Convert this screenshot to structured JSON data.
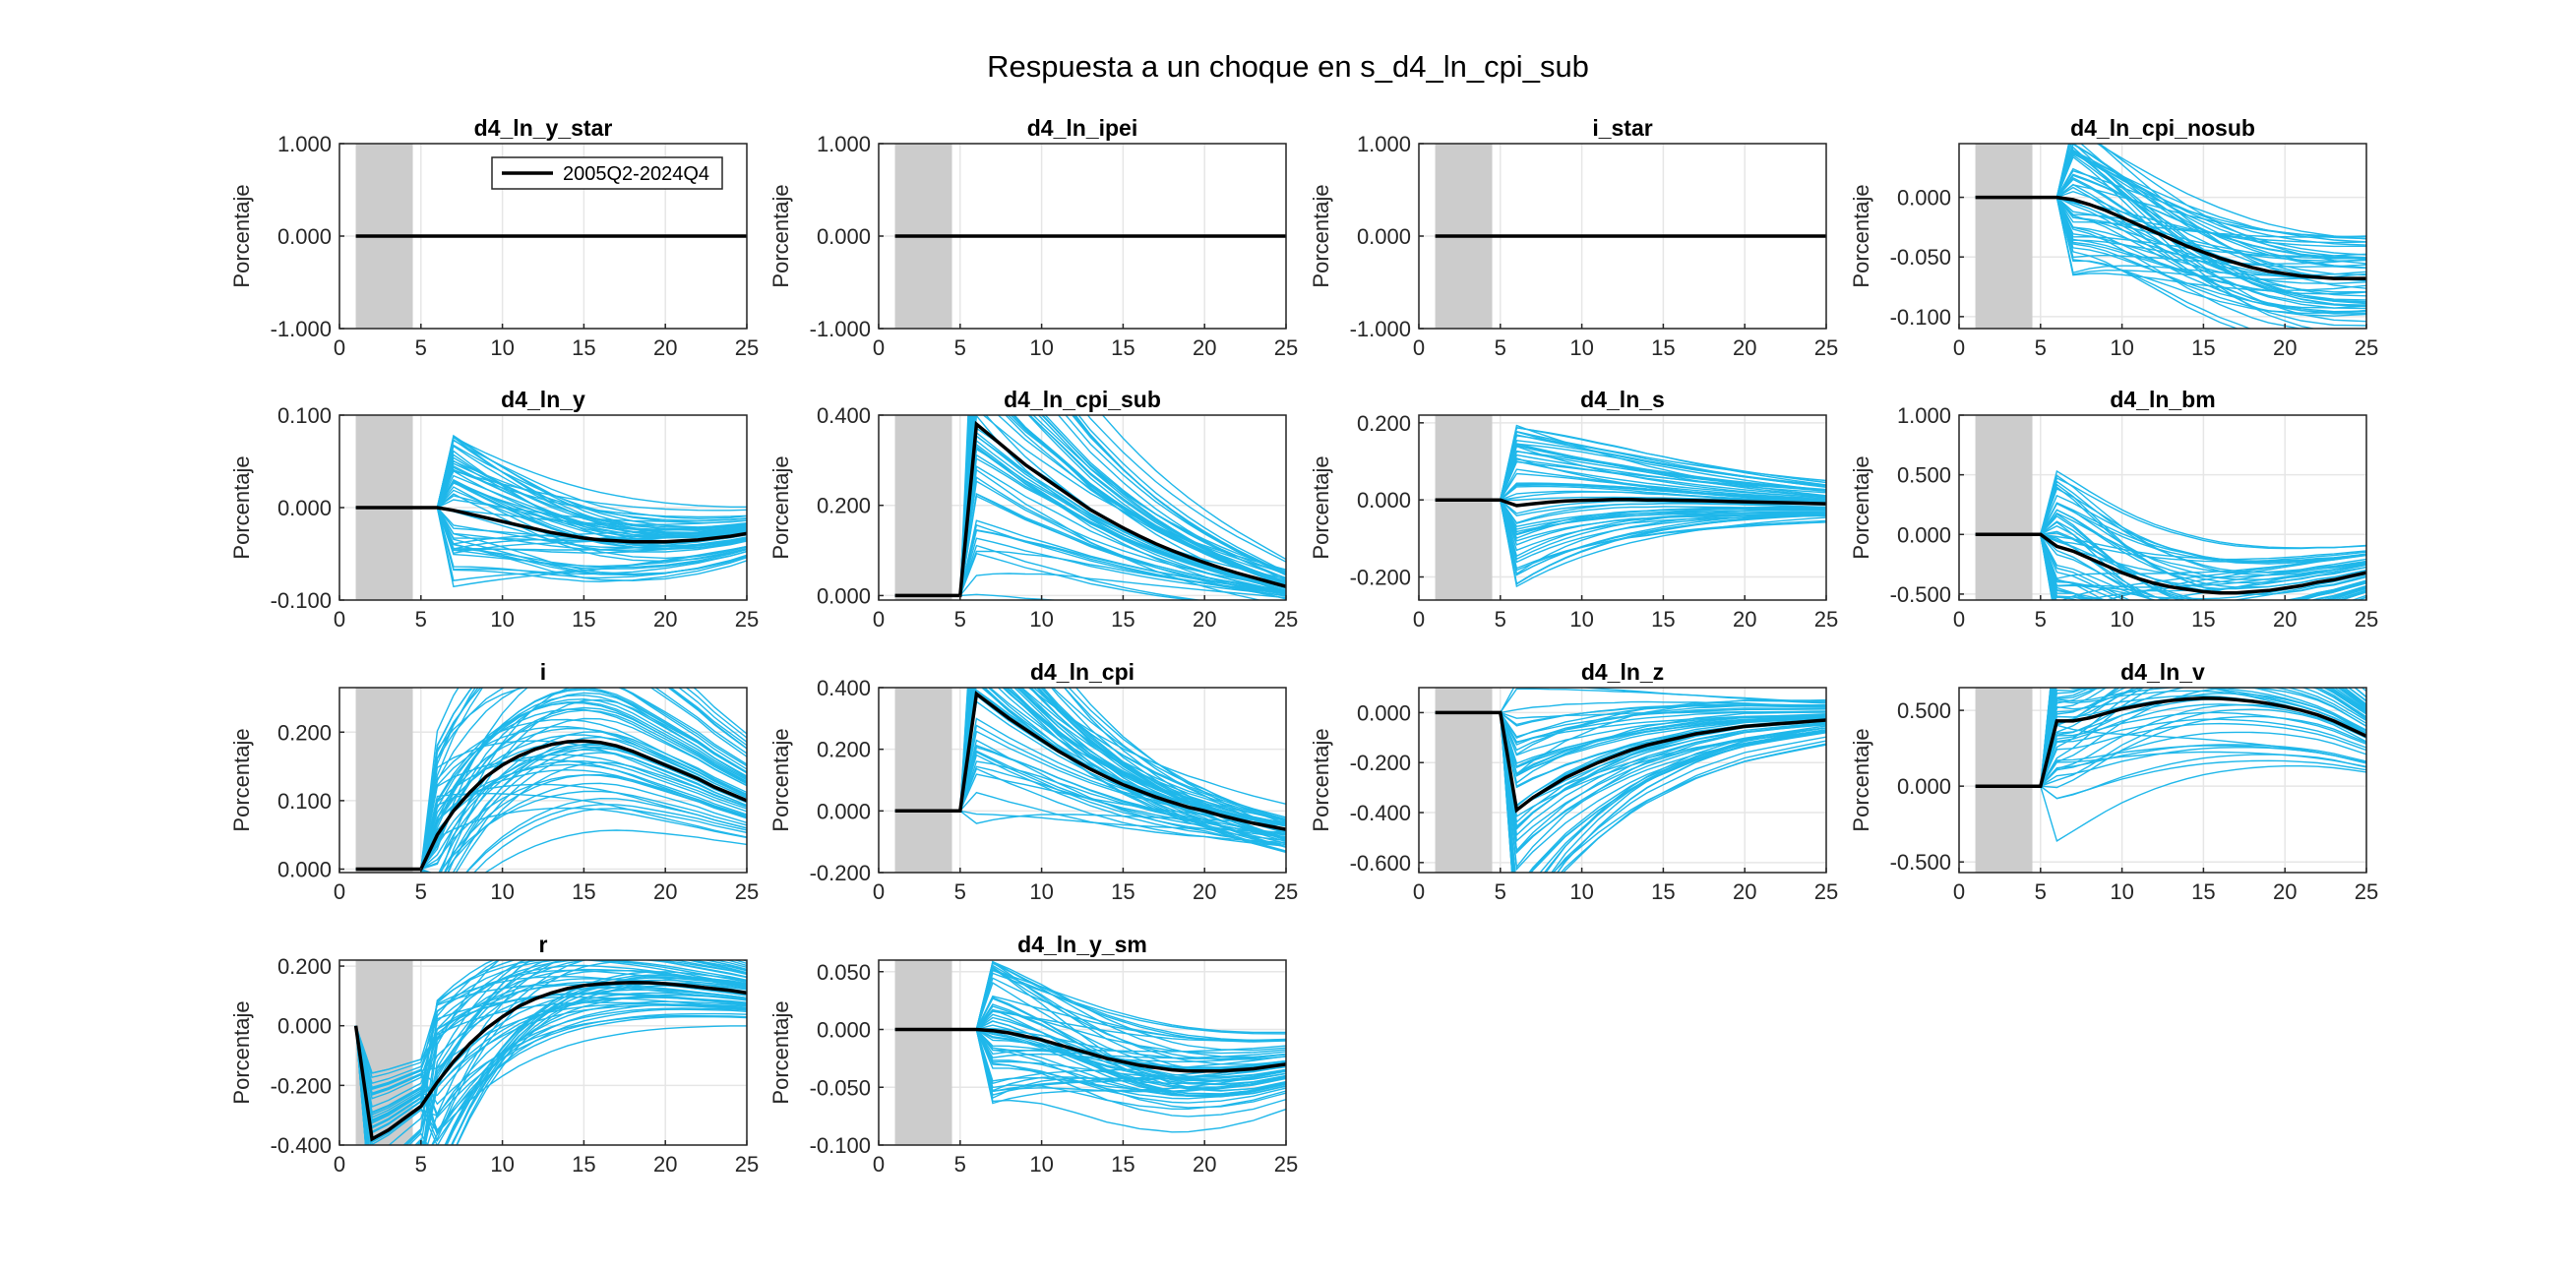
{
  "figure": {
    "title": "Respuesta a un choque en s_d4_ln_cpi_sub",
    "colors": {
      "mean_line": "#000000",
      "draw_lines": "#1fb7ea",
      "shade": "#cccccc",
      "grid": "#e6e6e6",
      "axes": "#262626"
    },
    "legend": {
      "entries": [
        "2005Q2-2024Q4"
      ],
      "placement": "top-right of first panel"
    }
  },
  "chart_data": [
    {
      "type": "line",
      "title": "d4_ln_y_star",
      "ylabel": "Porcentaje",
      "xlim": [
        0,
        25
      ],
      "ylim": [
        -1,
        1
      ],
      "yticks": [
        -1,
        0,
        1
      ],
      "ytick_labels": [
        "-1.000",
        "0.000",
        "1.000"
      ],
      "xticks": [
        0,
        5,
        10,
        15,
        20,
        25
      ],
      "shaded_x": [
        1,
        4.5
      ],
      "grid": true,
      "series": [
        {
          "name": "2005Q2-2024Q4",
          "x": [
            1,
            25
          ],
          "y": [
            0,
            0
          ]
        }
      ]
    },
    {
      "type": "line",
      "title": "d4_ln_ipei",
      "ylabel": "Porcentaje",
      "xlim": [
        0,
        25
      ],
      "ylim": [
        -1,
        1
      ],
      "yticks": [
        -1,
        0,
        1
      ],
      "ytick_labels": [
        "-1.000",
        "0.000",
        "1.000"
      ],
      "xticks": [
        0,
        5,
        10,
        15,
        20,
        25
      ],
      "shaded_x": [
        1,
        4.5
      ],
      "grid": true,
      "series": [
        {
          "x": [
            1,
            25
          ],
          "y": [
            0,
            0
          ]
        }
      ]
    },
    {
      "type": "line",
      "title": "i_star",
      "ylabel": "Porcentaje",
      "xlim": [
        0,
        25
      ],
      "ylim": [
        -1,
        1
      ],
      "yticks": [
        -1,
        0,
        1
      ],
      "ytick_labels": [
        "-1.000",
        "0.000",
        "1.000"
      ],
      "xticks": [
        0,
        5,
        10,
        15,
        20,
        25
      ],
      "shaded_x": [
        1,
        4.5
      ],
      "grid": true,
      "series": [
        {
          "x": [
            1,
            25
          ],
          "y": [
            0,
            0
          ]
        }
      ]
    },
    {
      "type": "line",
      "title": "d4_ln_cpi_nosub",
      "ylabel": "Porcentaje",
      "xlim": [
        0,
        25
      ],
      "ylim": [
        -0.11,
        0.045
      ],
      "yticks": [
        -0.1,
        -0.05,
        0
      ],
      "ytick_labels": [
        "-0.100",
        "-0.050",
        "0.000"
      ],
      "xticks": [
        0,
        5,
        10,
        15,
        20,
        25
      ],
      "shaded_x": [
        1,
        4.5
      ],
      "grid": true,
      "series": [
        {
          "x": [
            1,
            2,
            3,
            4,
            5,
            6,
            7,
            8,
            9,
            10,
            11,
            12,
            13,
            14,
            15,
            16,
            17,
            18,
            19,
            20,
            21,
            22,
            23,
            24,
            25
          ],
          "y": [
            0,
            0,
            0,
            0,
            0,
            0,
            -0.002,
            -0.006,
            -0.011,
            -0.017,
            -0.023,
            -0.029,
            -0.035,
            -0.041,
            -0.046,
            -0.051,
            -0.055,
            -0.059,
            -0.062,
            -0.064,
            -0.066,
            -0.067,
            -0.068,
            -0.068,
            -0.068
          ]
        }
      ]
    },
    {
      "type": "line",
      "title": "d4_ln_y",
      "ylabel": "Porcentaje",
      "xlim": [
        0,
        25
      ],
      "ylim": [
        -0.1,
        0.1
      ],
      "yticks": [
        -0.1,
        0,
        0.1
      ],
      "ytick_labels": [
        "-0.100",
        "0.000",
        "0.100"
      ],
      "xticks": [
        0,
        5,
        10,
        15,
        20,
        25
      ],
      "shaded_x": [
        1,
        4.5
      ],
      "grid": true,
      "series": [
        {
          "x": [
            1,
            2,
            3,
            4,
            5,
            6,
            7,
            8,
            9,
            10,
            11,
            12,
            13,
            14,
            15,
            16,
            17,
            18,
            19,
            20,
            21,
            22,
            23,
            24,
            25
          ],
          "y": [
            0,
            0,
            0,
            0,
            0,
            0,
            -0.003,
            -0.007,
            -0.011,
            -0.015,
            -0.019,
            -0.023,
            -0.027,
            -0.03,
            -0.033,
            -0.035,
            -0.036,
            -0.037,
            -0.037,
            -0.037,
            -0.036,
            -0.035,
            -0.033,
            -0.031,
            -0.028
          ]
        }
      ]
    },
    {
      "type": "line",
      "title": "d4_ln_cpi_sub",
      "ylabel": "Porcentaje",
      "xlim": [
        0,
        25
      ],
      "ylim": [
        -0.01,
        0.4
      ],
      "yticks": [
        0,
        0.2,
        0.4
      ],
      "ytick_labels": [
        "0.000",
        "0.200",
        "0.400"
      ],
      "xticks": [
        0,
        5,
        10,
        15,
        20,
        25
      ],
      "shaded_x": [
        1,
        4.5
      ],
      "grid": true,
      "series": [
        {
          "x": [
            1,
            2,
            3,
            4,
            5,
            6,
            7,
            8,
            9,
            10,
            11,
            12,
            13,
            14,
            15,
            16,
            17,
            18,
            19,
            20,
            21,
            22,
            23,
            24,
            25
          ],
          "y": [
            0,
            0,
            0,
            0,
            0,
            0.38,
            0.35,
            0.32,
            0.29,
            0.265,
            0.24,
            0.215,
            0.19,
            0.17,
            0.15,
            0.132,
            0.115,
            0.1,
            0.086,
            0.073,
            0.061,
            0.05,
            0.04,
            0.03,
            0.02
          ]
        }
      ]
    },
    {
      "type": "line",
      "title": "d4_ln_s",
      "ylabel": "Porcentaje",
      "xlim": [
        0,
        25
      ],
      "ylim": [
        -0.26,
        0.22
      ],
      "yticks": [
        -0.2,
        0,
        0.2
      ],
      "ytick_labels": [
        "-0.200",
        "0.000",
        "0.200"
      ],
      "xticks": [
        0,
        5,
        10,
        15,
        20,
        25
      ],
      "shaded_x": [
        1,
        4.5
      ],
      "grid": true,
      "series": [
        {
          "x": [
            1,
            2,
            3,
            4,
            5,
            6,
            7,
            8,
            9,
            10,
            11,
            12,
            13,
            14,
            15,
            16,
            17,
            18,
            19,
            20,
            21,
            22,
            23,
            24,
            25
          ],
          "y": [
            0,
            0,
            0,
            0,
            0,
            -0.015,
            -0.01,
            -0.006,
            -0.003,
            -0.001,
            0,
            0.001,
            0.001,
            0,
            0,
            -0.001,
            -0.002,
            -0.003,
            -0.004,
            -0.005,
            -0.006,
            -0.007,
            -0.008,
            -0.009,
            -0.01
          ]
        }
      ]
    },
    {
      "type": "line",
      "title": "d4_ln_bm",
      "ylabel": "Porcentaje",
      "xlim": [
        0,
        25
      ],
      "ylim": [
        -0.55,
        1.0
      ],
      "yticks": [
        -0.5,
        0,
        0.5,
        1.0
      ],
      "ytick_labels": [
        "-0.500",
        "0.000",
        "0.500",
        "1.000"
      ],
      "xticks": [
        0,
        5,
        10,
        15,
        20,
        25
      ],
      "shaded_x": [
        1,
        4.5
      ],
      "grid": true,
      "series": [
        {
          "x": [
            1,
            2,
            3,
            4,
            5,
            6,
            7,
            8,
            9,
            10,
            11,
            12,
            13,
            14,
            15,
            16,
            17,
            18,
            19,
            20,
            21,
            22,
            23,
            24,
            25
          ],
          "y": [
            0,
            0,
            0,
            0,
            0,
            -0.1,
            -0.14,
            -0.2,
            -0.26,
            -0.32,
            -0.37,
            -0.41,
            -0.44,
            -0.46,
            -0.48,
            -0.49,
            -0.49,
            -0.48,
            -0.47,
            -0.45,
            -0.43,
            -0.4,
            -0.38,
            -0.35,
            -0.32
          ]
        }
      ]
    },
    {
      "type": "line",
      "title": "i",
      "ylabel": "Porcentaje",
      "xlim": [
        0,
        25
      ],
      "ylim": [
        -0.005,
        0.265
      ],
      "yticks": [
        0,
        0.1,
        0.2
      ],
      "ytick_labels": [
        "0.000",
        "0.100",
        "0.200"
      ],
      "xticks": [
        0,
        5,
        10,
        15,
        20,
        25
      ],
      "shaded_x": [
        1,
        4.5
      ],
      "grid": true,
      "series": [
        {
          "x": [
            1,
            2,
            3,
            4,
            5,
            6,
            7,
            8,
            9,
            10,
            11,
            12,
            13,
            14,
            15,
            16,
            17,
            18,
            19,
            20,
            21,
            22,
            23,
            24,
            25
          ],
          "y": [
            0,
            0,
            0,
            0,
            0,
            0.05,
            0.085,
            0.112,
            0.135,
            0.152,
            0.165,
            0.175,
            0.182,
            0.186,
            0.187,
            0.185,
            0.18,
            0.172,
            0.162,
            0.152,
            0.142,
            0.132,
            0.12,
            0.11,
            0.1
          ]
        }
      ]
    },
    {
      "type": "line",
      "title": "d4_ln_cpi",
      "ylabel": "Porcentaje",
      "xlim": [
        0,
        25
      ],
      "ylim": [
        -0.2,
        0.4
      ],
      "yticks": [
        -0.2,
        0,
        0.2,
        0.4
      ],
      "ytick_labels": [
        "-0.200",
        "0.000",
        "0.200",
        "0.400"
      ],
      "xticks": [
        0,
        5,
        10,
        15,
        20,
        25
      ],
      "shaded_x": [
        1,
        4.5
      ],
      "grid": true,
      "series": [
        {
          "x": [
            1,
            2,
            3,
            4,
            5,
            6,
            7,
            8,
            9,
            10,
            11,
            12,
            13,
            14,
            15,
            16,
            17,
            18,
            19,
            20,
            21,
            22,
            23,
            24,
            25
          ],
          "y": [
            0,
            0,
            0,
            0,
            0,
            0.38,
            0.34,
            0.3,
            0.265,
            0.23,
            0.195,
            0.165,
            0.135,
            0.11,
            0.085,
            0.065,
            0.045,
            0.028,
            0.012,
            0,
            -0.015,
            -0.028,
            -0.04,
            -0.05,
            -0.06
          ]
        }
      ]
    },
    {
      "type": "line",
      "title": "d4_ln_z",
      "ylabel": "Porcentaje",
      "xlim": [
        0,
        25
      ],
      "ylim": [
        -0.64,
        0.1
      ],
      "yticks": [
        -0.6,
        -0.4,
        -0.2,
        0
      ],
      "ytick_labels": [
        "-0.600",
        "-0.400",
        "-0.200",
        "0.000"
      ],
      "xticks": [
        0,
        5,
        10,
        15,
        20,
        25
      ],
      "shaded_x": [
        1,
        4.5
      ],
      "grid": true,
      "series": [
        {
          "x": [
            1,
            2,
            3,
            4,
            5,
            6,
            7,
            8,
            9,
            10,
            11,
            12,
            13,
            14,
            15,
            16,
            17,
            18,
            19,
            20,
            21,
            22,
            23,
            24,
            25
          ],
          "y": [
            0,
            0,
            0,
            0,
            0,
            -0.39,
            -0.34,
            -0.3,
            -0.26,
            -0.23,
            -0.2,
            -0.175,
            -0.15,
            -0.13,
            -0.115,
            -0.1,
            -0.085,
            -0.075,
            -0.065,
            -0.055,
            -0.05,
            -0.045,
            -0.04,
            -0.035,
            -0.03
          ]
        }
      ]
    },
    {
      "type": "line",
      "title": "d4_ln_v",
      "ylabel": "Porcentaje",
      "xlim": [
        0,
        25
      ],
      "ylim": [
        -0.57,
        0.65
      ],
      "yticks": [
        -0.5,
        0,
        0.5
      ],
      "ytick_labels": [
        "-0.500",
        "0.000",
        "0.500"
      ],
      "xticks": [
        0,
        5,
        10,
        15,
        20,
        25
      ],
      "shaded_x": [
        1,
        4.5
      ],
      "grid": true,
      "series": [
        {
          "x": [
            1,
            2,
            3,
            4,
            5,
            6,
            7,
            8,
            9,
            10,
            11,
            12,
            13,
            14,
            15,
            16,
            17,
            18,
            19,
            20,
            21,
            22,
            23,
            24,
            25
          ],
          "y": [
            0,
            0,
            0,
            0,
            0,
            0.43,
            0.43,
            0.45,
            0.48,
            0.51,
            0.53,
            0.55,
            0.565,
            0.575,
            0.58,
            0.578,
            0.57,
            0.56,
            0.545,
            0.525,
            0.5,
            0.47,
            0.43,
            0.38,
            0.33
          ]
        }
      ]
    },
    {
      "type": "line",
      "title": "r",
      "ylabel": "Porcentaje",
      "xlim": [
        0,
        25
      ],
      "ylim": [
        -0.4,
        0.22
      ],
      "yticks": [
        -0.4,
        -0.2,
        0,
        0.2
      ],
      "ytick_labels": [
        "-0.400",
        "-0.200",
        "0.000",
        "0.200"
      ],
      "xticks": [
        0,
        5,
        10,
        15,
        20,
        25
      ],
      "shaded_x": [
        1,
        4.5
      ],
      "grid": true,
      "series": [
        {
          "x": [
            1,
            2,
            3,
            4,
            5,
            6,
            7,
            8,
            9,
            10,
            11,
            12,
            13,
            14,
            15,
            16,
            17,
            18,
            19,
            20,
            21,
            22,
            23,
            24,
            25
          ],
          "y": [
            0,
            -0.38,
            -0.35,
            -0.31,
            -0.27,
            -0.19,
            -0.12,
            -0.06,
            -0.01,
            0.03,
            0.065,
            0.09,
            0.11,
            0.125,
            0.135,
            0.14,
            0.143,
            0.145,
            0.144,
            0.141,
            0.136,
            0.13,
            0.124,
            0.118,
            0.11
          ]
        }
      ]
    },
    {
      "type": "line",
      "title": "d4_ln_y_sm",
      "ylabel": "Porcentaje",
      "xlim": [
        0,
        25
      ],
      "ylim": [
        -0.1,
        0.06
      ],
      "yticks": [
        -0.1,
        -0.05,
        0,
        0.05
      ],
      "ytick_labels": [
        "-0.100",
        "-0.050",
        "0.000",
        "0.050"
      ],
      "xticks": [
        0,
        5,
        10,
        15,
        20,
        25
      ],
      "shaded_x": [
        1,
        4.5
      ],
      "grid": true,
      "series": [
        {
          "x": [
            1,
            2,
            3,
            4,
            5,
            6,
            7,
            8,
            9,
            10,
            11,
            12,
            13,
            14,
            15,
            16,
            17,
            18,
            19,
            20,
            21,
            22,
            23,
            24,
            25
          ],
          "y": [
            0,
            0,
            0,
            0,
            0,
            0,
            -0.001,
            -0.003,
            -0.006,
            -0.009,
            -0.013,
            -0.017,
            -0.021,
            -0.025,
            -0.028,
            -0.031,
            -0.033,
            -0.035,
            -0.036,
            -0.036,
            -0.036,
            -0.035,
            -0.034,
            -0.032,
            -0.03
          ]
        }
      ]
    }
  ]
}
